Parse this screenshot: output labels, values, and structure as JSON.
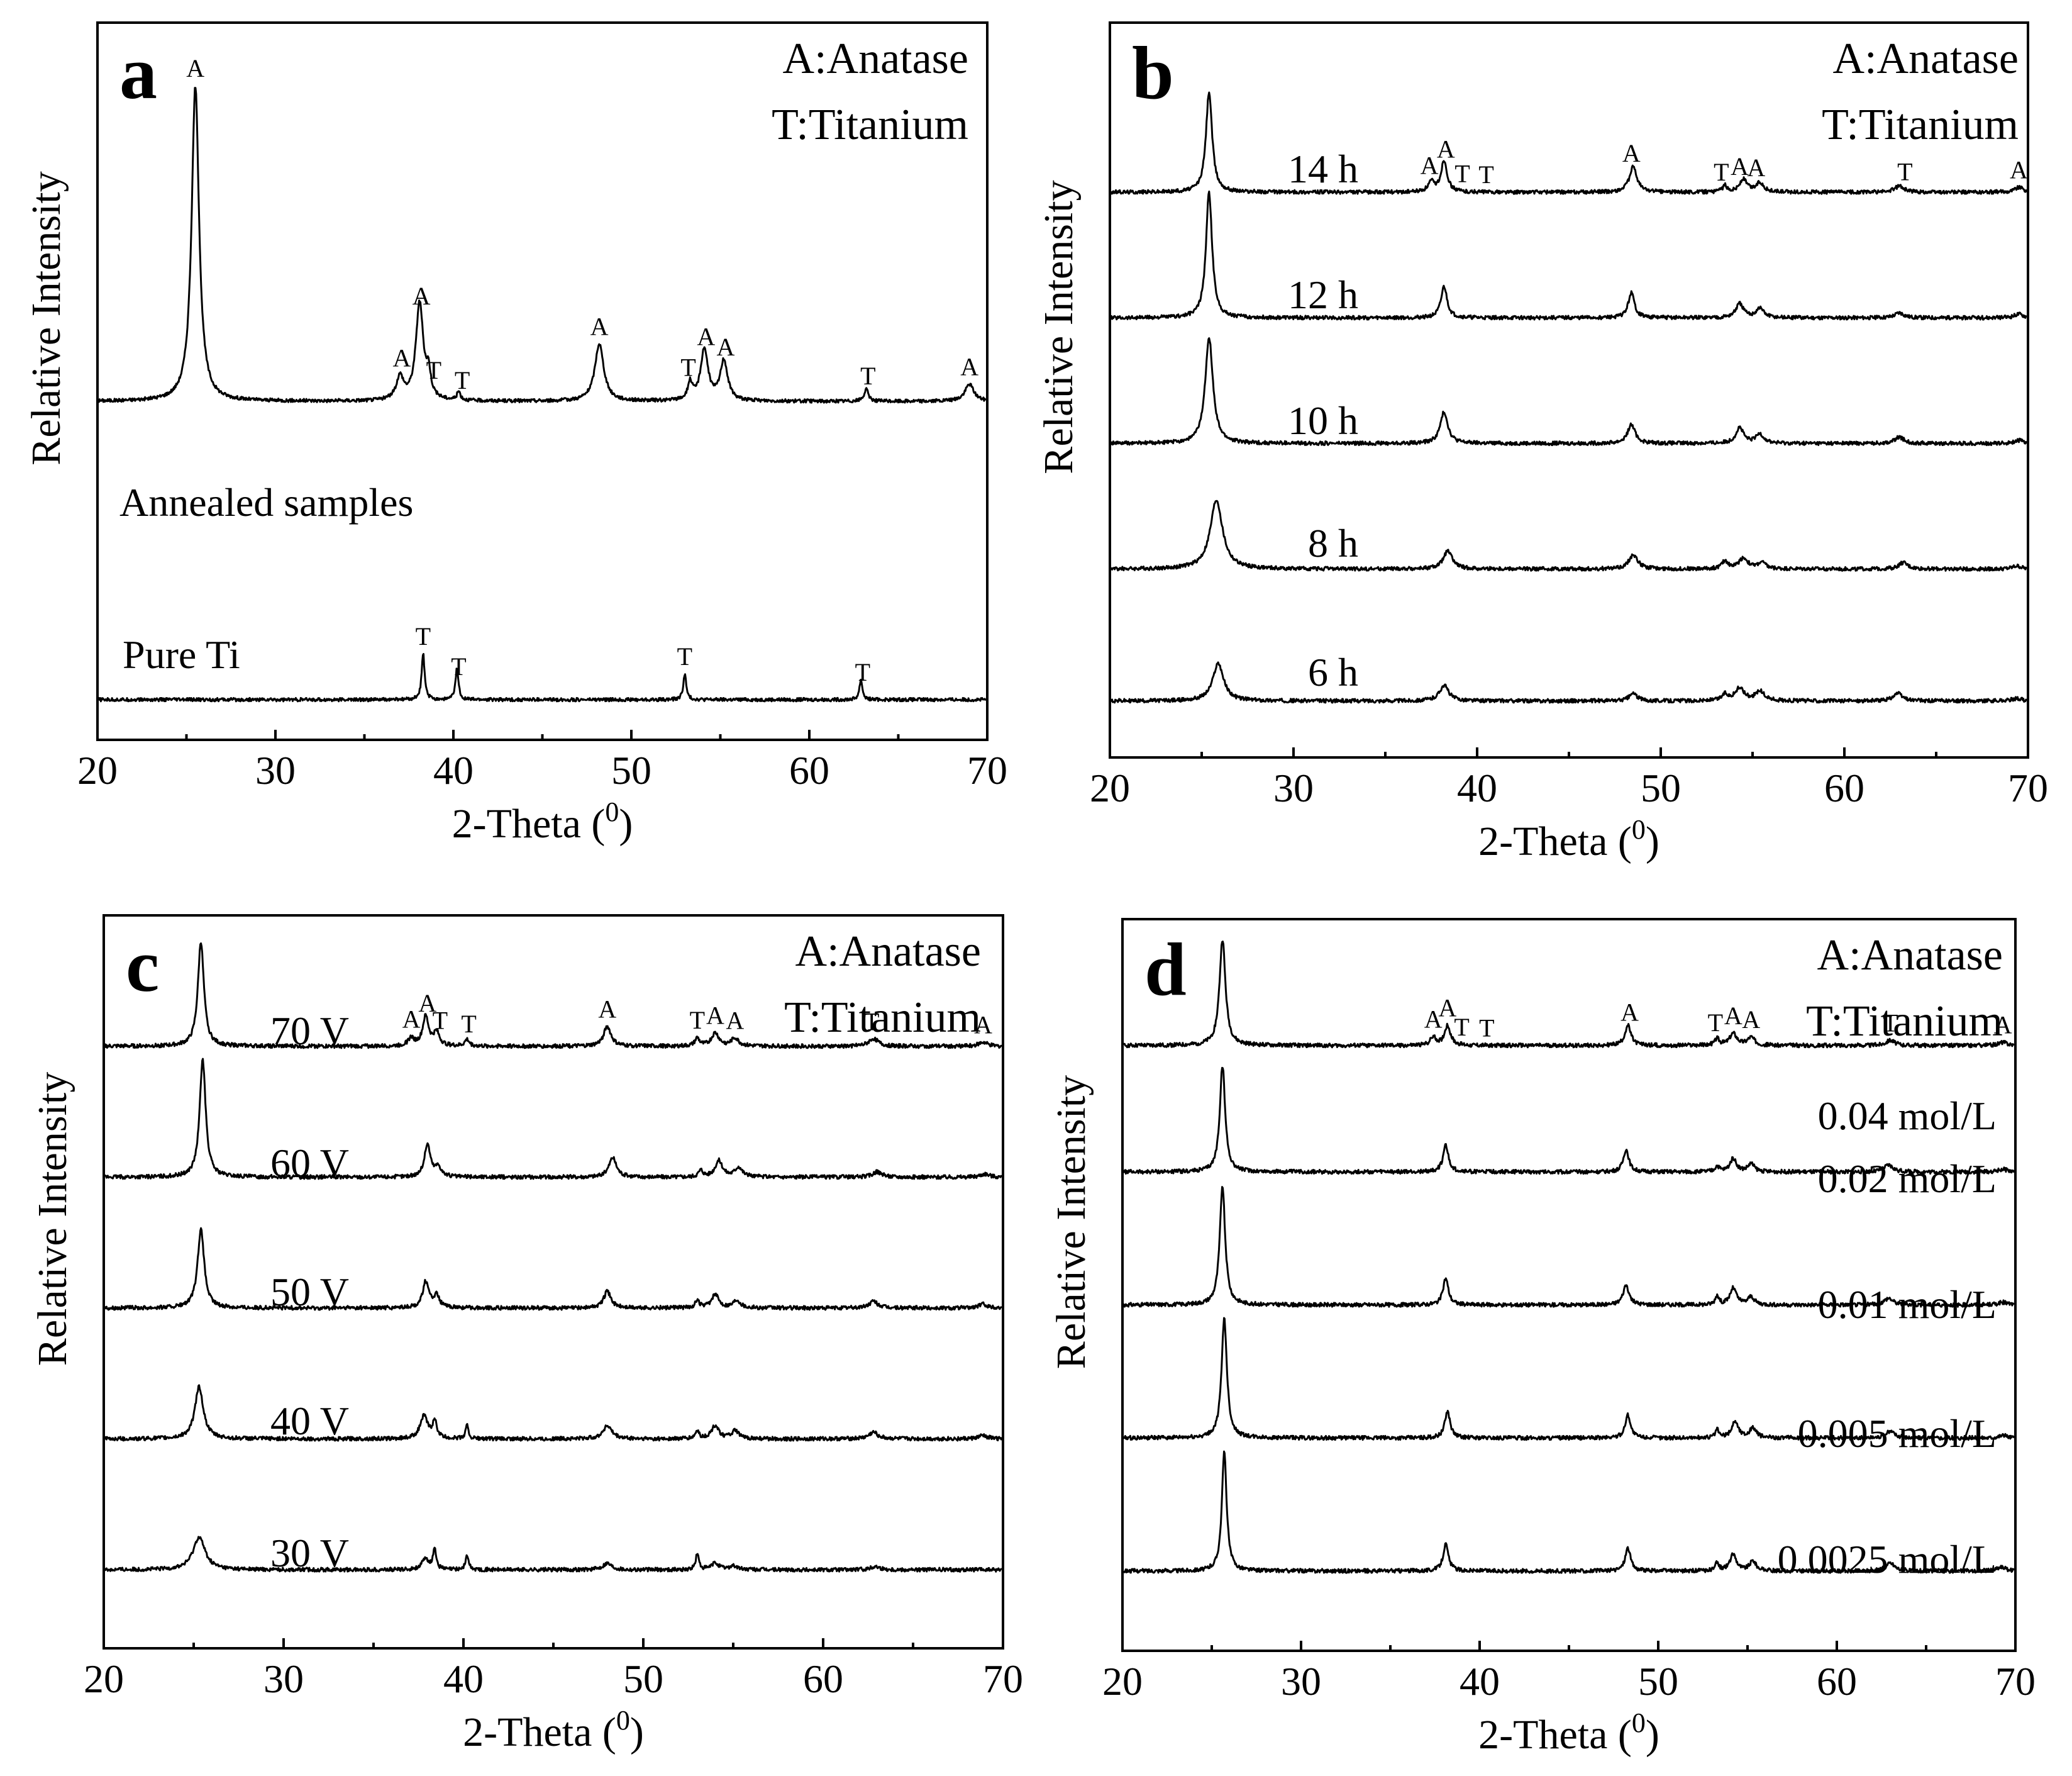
{
  "chart_data": [
    {
      "type": "line",
      "panel": "a",
      "xlabel": "2-Theta (0)",
      "xlabel_main": "2-Theta (",
      "xlabel_sup": "0",
      "xlabel_end": ")",
      "ylabel": "Relative Intensity",
      "xlim": [
        20,
        70
      ],
      "xticks": [
        "20",
        "30",
        "40",
        "50",
        "60",
        "70"
      ],
      "legend": [
        "A:Anatase",
        "T:Titanium"
      ],
      "series": [
        {
          "name": "Annealed samples",
          "baseline": 0.59,
          "peaks": [
            [
              25.5,
              0.55,
              0.25
            ],
            [
              37.0,
              0.04,
              0.25
            ],
            [
              38.1,
              0.17,
              0.25
            ],
            [
              38.6,
              0.04,
              0.15
            ],
            [
              40.3,
              0.015,
              0.12
            ],
            [
              48.2,
              0.1,
              0.3
            ],
            [
              53.3,
              0.03,
              0.15
            ],
            [
              54.1,
              0.09,
              0.25
            ],
            [
              55.2,
              0.07,
              0.25
            ],
            [
              63.2,
              0.02,
              0.15
            ],
            [
              69.0,
              0.03,
              0.3
            ]
          ],
          "annotations": [
            [
              25.5,
              "A"
            ],
            [
              37.1,
              "A"
            ],
            [
              38.2,
              "A"
            ],
            [
              38.9,
              "T"
            ],
            [
              40.5,
              "T"
            ],
            [
              48.2,
              "A"
            ],
            [
              53.2,
              "T"
            ],
            [
              54.2,
              "A"
            ],
            [
              55.3,
              "A"
            ],
            [
              63.3,
              "T"
            ],
            [
              69.0,
              "A"
            ]
          ]
        },
        {
          "name": "Pure Ti",
          "baseline": 0.07,
          "peaks": [
            [
              38.3,
              0.08,
              0.1
            ],
            [
              40.2,
              0.055,
              0.1
            ],
            [
              53.0,
              0.045,
              0.1
            ],
            [
              62.9,
              0.035,
              0.1
            ]
          ],
          "annotations": [
            [
              38.3,
              "T"
            ],
            [
              40.3,
              "T"
            ],
            [
              53.0,
              "T"
            ],
            [
              63.0,
              "T"
            ]
          ]
        }
      ]
    },
    {
      "type": "line",
      "panel": "b",
      "xlabel": "2-Theta (0)",
      "xlabel_main": "2-Theta (",
      "xlabel_sup": "0",
      "xlabel_end": ")",
      "ylabel": "Relative Intensity",
      "xlim": [
        20,
        70
      ],
      "xticks": [
        "20",
        "30",
        "40",
        "50",
        "60",
        "70"
      ],
      "legend": [
        "A:Anatase",
        "T:Titanium"
      ],
      "series": [
        {
          "name": "14 h",
          "baseline": 0.78,
          "peaks": [
            [
              25.4,
              0.16,
              0.2
            ],
            [
              37.5,
              0.015,
              0.2
            ],
            [
              38.2,
              0.05,
              0.2
            ],
            [
              48.5,
              0.04,
              0.25
            ],
            [
              53.5,
              0.01,
              0.15
            ],
            [
              54.5,
              0.02,
              0.25
            ],
            [
              55.4,
              0.015,
              0.25
            ],
            [
              63.0,
              0.01,
              0.3
            ],
            [
              69.5,
              0.008,
              0.3
            ]
          ],
          "annotations": [
            [
              37.4,
              "A"
            ],
            [
              38.3,
              "A"
            ],
            [
              39.2,
              "T"
            ],
            [
              40.5,
              "T"
            ],
            [
              48.4,
              "A"
            ],
            [
              53.3,
              "T"
            ],
            [
              54.3,
              "A"
            ],
            [
              55.2,
              "A"
            ],
            [
              63.3,
              "T"
            ],
            [
              69.5,
              "A"
            ]
          ]
        },
        {
          "name": "12 h",
          "baseline": 0.58,
          "peaks": [
            [
              25.4,
              0.2,
              0.2
            ],
            [
              38.2,
              0.05,
              0.2
            ],
            [
              48.4,
              0.04,
              0.2
            ],
            [
              54.3,
              0.022,
              0.25
            ],
            [
              55.4,
              0.015,
              0.25
            ],
            [
              63.0,
              0.008,
              0.3
            ],
            [
              69.5,
              0.006,
              0.3
            ]
          ]
        },
        {
          "name": "10 h",
          "baseline": 0.38,
          "peaks": [
            [
              25.4,
              0.17,
              0.25
            ],
            [
              38.2,
              0.05,
              0.25
            ],
            [
              48.4,
              0.03,
              0.25
            ],
            [
              54.3,
              0.025,
              0.25
            ],
            [
              55.4,
              0.015,
              0.25
            ],
            [
              63.0,
              0.01,
              0.3
            ],
            [
              69.5,
              0.005,
              0.3
            ]
          ]
        },
        {
          "name": "8 h",
          "baseline": 0.18,
          "peaks": [
            [
              25.8,
              0.11,
              0.4
            ],
            [
              38.4,
              0.028,
              0.3
            ],
            [
              48.5,
              0.022,
              0.3
            ],
            [
              53.5,
              0.012,
              0.2
            ],
            [
              54.5,
              0.017,
              0.3
            ],
            [
              55.5,
              0.01,
              0.25
            ],
            [
              63.2,
              0.01,
              0.3
            ],
            [
              69.4,
              0.005,
              0.3
            ]
          ]
        },
        {
          "name": "6 h",
          "baseline": -0.03,
          "peaks": [
            [
              25.9,
              0.06,
              0.35
            ],
            [
              38.2,
              0.025,
              0.3
            ],
            [
              48.5,
              0.012,
              0.25
            ],
            [
              53.5,
              0.01,
              0.2
            ],
            [
              54.3,
              0.02,
              0.3
            ],
            [
              55.4,
              0.015,
              0.3
            ],
            [
              62.9,
              0.012,
              0.3
            ],
            [
              69.4,
              0.004,
              0.3
            ]
          ]
        }
      ]
    },
    {
      "type": "line",
      "panel": "c",
      "xlabel": "2-Theta (0)",
      "xlabel_main": "2-Theta (",
      "xlabel_sup": "0",
      "xlabel_end": ")",
      "ylabel": "Relative Intensity",
      "xlim": [
        20,
        70
      ],
      "xticks": [
        "20",
        "30",
        "40",
        "50",
        "60",
        "70"
      ],
      "legend": [
        "A:Anatase",
        "T:Titanium"
      ],
      "series": [
        {
          "name": "70 V",
          "baseline": 0.8,
          "peaks": [
            [
              25.4,
              0.16,
              0.2
            ],
            [
              37.1,
              0.012,
              0.2
            ],
            [
              37.9,
              0.045,
              0.2
            ],
            [
              38.5,
              0.02,
              0.2
            ],
            [
              40.2,
              0.01,
              0.15
            ],
            [
              48.0,
              0.03,
              0.25
            ],
            [
              53.0,
              0.012,
              0.15
            ],
            [
              54.0,
              0.02,
              0.25
            ],
            [
              55.1,
              0.012,
              0.25
            ],
            [
              62.8,
              0.012,
              0.3
            ],
            [
              68.9,
              0.006,
              0.3
            ]
          ],
          "annotations": [
            [
              37.1,
              "A"
            ],
            [
              38.0,
              "A"
            ],
            [
              38.7,
              "T"
            ],
            [
              40.3,
              "T"
            ],
            [
              48.0,
              "A"
            ],
            [
              53.0,
              "T"
            ],
            [
              54.0,
              "A"
            ],
            [
              55.1,
              "A"
            ],
            [
              62.7,
              "T"
            ],
            [
              68.9,
              "A"
            ]
          ]
        },
        {
          "name": "60 V",
          "baseline": 0.6,
          "peaks": [
            [
              25.5,
              0.18,
              0.2
            ],
            [
              38.0,
              0.05,
              0.2
            ],
            [
              38.6,
              0.015,
              0.2
            ],
            [
              48.3,
              0.03,
              0.25
            ],
            [
              53.2,
              0.01,
              0.15
            ],
            [
              54.2,
              0.025,
              0.25
            ],
            [
              55.3,
              0.015,
              0.25
            ],
            [
              63.0,
              0.008,
              0.3
            ],
            [
              69.0,
              0.005,
              0.3
            ]
          ]
        },
        {
          "name": "50 V",
          "baseline": 0.4,
          "peaks": [
            [
              25.4,
              0.12,
              0.22
            ],
            [
              37.9,
              0.04,
              0.2
            ],
            [
              38.5,
              0.018,
              0.2
            ],
            [
              48.0,
              0.025,
              0.25
            ],
            [
              53.0,
              0.01,
              0.15
            ],
            [
              54.0,
              0.02,
              0.25
            ],
            [
              55.2,
              0.012,
              0.25
            ],
            [
              62.8,
              0.01,
              0.3
            ],
            [
              68.9,
              0.006,
              0.3
            ]
          ]
        },
        {
          "name": "40 V",
          "baseline": 0.2,
          "peaks": [
            [
              25.3,
              0.08,
              0.28
            ],
            [
              37.8,
              0.035,
              0.25
            ],
            [
              38.4,
              0.025,
              0.15
            ],
            [
              40.2,
              0.02,
              0.1
            ],
            [
              48.0,
              0.02,
              0.3
            ],
            [
              53.0,
              0.012,
              0.12
            ],
            [
              54.0,
              0.02,
              0.25
            ],
            [
              55.1,
              0.012,
              0.25
            ],
            [
              62.8,
              0.01,
              0.3
            ],
            [
              68.9,
              0.005,
              0.3
            ]
          ]
        },
        {
          "name": "30 V",
          "baseline": 0.0,
          "peaks": [
            [
              25.3,
              0.05,
              0.4
            ],
            [
              37.9,
              0.016,
              0.25
            ],
            [
              38.4,
              0.032,
              0.1
            ],
            [
              40.2,
              0.022,
              0.1
            ],
            [
              48.0,
              0.01,
              0.3
            ],
            [
              53.0,
              0.025,
              0.1
            ],
            [
              54.0,
              0.01,
              0.25
            ],
            [
              55.0,
              0.006,
              0.25
            ],
            [
              62.9,
              0.005,
              0.3
            ]
          ]
        }
      ]
    },
    {
      "type": "line",
      "panel": "d",
      "xlabel": "2-Theta (0)",
      "xlabel_main": "2-Theta (",
      "xlabel_sup": "0",
      "xlabel_end": ")",
      "ylabel": "Relative Intensity",
      "xlim": [
        20,
        70
      ],
      "xticks": [
        "20",
        "30",
        "40",
        "50",
        "60",
        "70"
      ],
      "legend": [
        "A:Anatase",
        "T:Titanium"
      ],
      "series": [
        {
          "name": "0.04 mol/L",
          "baseline": 0.79,
          "peaks": [
            [
              25.6,
              0.16,
              0.2
            ],
            [
              37.4,
              0.012,
              0.2
            ],
            [
              38.2,
              0.03,
              0.2
            ],
            [
              48.3,
              0.03,
              0.2
            ],
            [
              53.3,
              0.01,
              0.15
            ],
            [
              54.2,
              0.018,
              0.25
            ],
            [
              55.2,
              0.012,
              0.25
            ],
            [
              63.0,
              0.008,
              0.3
            ],
            [
              69.3,
              0.005,
              0.3
            ]
          ],
          "annotations": [
            [
              37.4,
              "A"
            ],
            [
              38.2,
              "A"
            ],
            [
              39.0,
              "T"
            ],
            [
              40.4,
              "T"
            ],
            [
              48.4,
              "A"
            ],
            [
              53.2,
              "T"
            ],
            [
              54.2,
              "A"
            ],
            [
              55.2,
              "A"
            ],
            [
              63.0,
              "T"
            ],
            [
              69.3,
              "A"
            ]
          ]
        },
        {
          "name": "0.02 mol/L",
          "baseline": 0.6,
          "peaks": [
            [
              25.6,
              0.16,
              0.18
            ],
            [
              38.1,
              0.04,
              0.18
            ],
            [
              48.2,
              0.034,
              0.18
            ],
            [
              53.3,
              0.008,
              0.15
            ],
            [
              54.2,
              0.02,
              0.22
            ],
            [
              55.2,
              0.012,
              0.22
            ],
            [
              62.9,
              0.01,
              0.3
            ],
            [
              69.3,
              0.004,
              0.3
            ]
          ]
        },
        {
          "name": "0.01 mol/L",
          "baseline": 0.4,
          "peaks": [
            [
              25.6,
              0.18,
              0.18
            ],
            [
              38.1,
              0.04,
              0.18
            ],
            [
              48.2,
              0.03,
              0.2
            ],
            [
              53.3,
              0.014,
              0.12
            ],
            [
              54.2,
              0.025,
              0.22
            ],
            [
              55.2,
              0.012,
              0.22
            ],
            [
              62.9,
              0.01,
              0.3
            ],
            [
              69.3,
              0.004,
              0.3
            ]
          ]
        },
        {
          "name": "0.005 mol/L",
          "baseline": 0.2,
          "peaks": [
            [
              25.7,
              0.18,
              0.18
            ],
            [
              38.2,
              0.04,
              0.18
            ],
            [
              48.3,
              0.035,
              0.18
            ],
            [
              53.3,
              0.012,
              0.12
            ],
            [
              54.3,
              0.025,
              0.22
            ],
            [
              55.3,
              0.015,
              0.22
            ],
            [
              63.0,
              0.01,
              0.3
            ],
            [
              69.3,
              0.004,
              0.3
            ]
          ]
        },
        {
          "name": "0.0025 mol/L",
          "baseline": 0.0,
          "peaks": [
            [
              25.7,
              0.18,
              0.16
            ],
            [
              38.1,
              0.04,
              0.18
            ],
            [
              48.3,
              0.035,
              0.18
            ],
            [
              53.3,
              0.012,
              0.12
            ],
            [
              54.2,
              0.025,
              0.22
            ],
            [
              55.3,
              0.015,
              0.22
            ],
            [
              63.0,
              0.012,
              0.3
            ],
            [
              69.2,
              0.006,
              0.3
            ]
          ]
        }
      ]
    }
  ]
}
